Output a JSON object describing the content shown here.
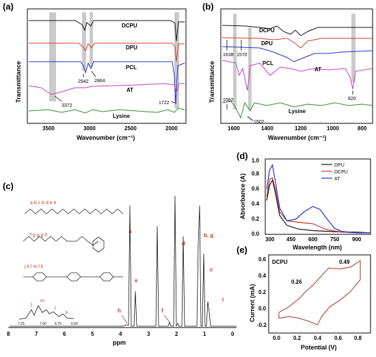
{
  "panels": {
    "a": {
      "letter": "(a)",
      "ylabel": "Transmittance",
      "xlabel": "Wavenumber (cm⁻¹)",
      "x_ticks": [
        "3500",
        "3000",
        "2500",
        "2000"
      ],
      "series": [
        {
          "name": "DCPU",
          "color": "#111111"
        },
        {
          "name": "DPU",
          "color": "#d43a2a"
        },
        {
          "name": "PCL",
          "color": "#1f2fd0"
        },
        {
          "name": "AT",
          "color": "#c43cc8"
        },
        {
          "name": "Lysine",
          "color": "#2e8b2e"
        }
      ],
      "annotations": [
        "2942",
        "2864",
        "3372",
        "1722"
      ]
    },
    "b": {
      "letter": "(b)",
      "ylabel": "Transmittance",
      "xlabel": "Wavenumber (cm⁻¹)",
      "x_ticks": [
        "1600",
        "1400",
        "1200",
        "1000",
        "800"
      ],
      "series": [
        {
          "name": "DCPU",
          "color": "#111111"
        },
        {
          "name": "DPU",
          "color": "#d43a2a"
        },
        {
          "name": "PCL",
          "color": "#1f2fd0"
        },
        {
          "name": "AT",
          "color": "#c43cc8"
        },
        {
          "name": "Lysine",
          "color": "#2e8b2e"
        }
      ],
      "annotations": [
        "1638",
        "1570",
        "820",
        "1582",
        "1502"
      ]
    },
    "c": {
      "letter": "(c)",
      "xlabel": "ppm",
      "x_ticks": [
        "8",
        "7",
        "6",
        "5",
        "4",
        "3",
        "2",
        "1",
        "0"
      ],
      "struct_labels_1": "a b c b d   e e",
      "struct_labels_2": "f g g g h",
      "struct_labels_3": "j  k  l        m        l  k",
      "peak_labels": [
        "a",
        "h",
        "e",
        "f",
        "d",
        "b, g",
        "c",
        "i"
      ],
      "inset_labels": [
        "j",
        "m",
        "l",
        "k"
      ],
      "inset_ticks": [
        "7.25",
        "7.00",
        "6.75",
        "6.50"
      ]
    },
    "d": {
      "letter": "(d)",
      "ylabel": "Absorbance (A)",
      "xlabel": "Wavelength (nm)",
      "x_ticks": [
        "300",
        "450",
        "600",
        "750",
        "900"
      ],
      "y_ticks": [
        "0.0",
        "0.2",
        "0.4",
        "0.6",
        "0.8",
        "1.0"
      ],
      "legend": [
        {
          "name": "DPU",
          "color": "#111111"
        },
        {
          "name": "DCPU",
          "color": "#c0392b"
        },
        {
          "name": "AT",
          "color": "#1f2fd0"
        }
      ]
    },
    "e": {
      "letter": "(e)",
      "ylabel": "Current (mA)",
      "xlabel": "Potential (V)",
      "x_ticks": [
        "0.0",
        "0.2",
        "0.4",
        "0.6",
        "0.8"
      ],
      "y_ticks": [
        "-0.2",
        "0.0",
        "0.2",
        "0.4",
        "0.6"
      ],
      "series_label": "DCPU",
      "annotations": [
        "0.49",
        "0.26"
      ],
      "color": "#b5523b"
    }
  },
  "chart_data": [
    {
      "type": "line",
      "panel": "d",
      "xlabel": "Wavelength (nm)",
      "ylabel": "Absorbance (A)",
      "xlim": [
        270,
        1000
      ],
      "ylim": [
        0,
        1.0
      ],
      "series": [
        {
          "name": "DPU",
          "x": [
            280,
            300,
            320,
            340,
            370,
            420,
            500,
            600,
            700,
            800,
            900,
            1000
          ],
          "values": [
            0.45,
            0.65,
            0.72,
            0.55,
            0.25,
            0.12,
            0.07,
            0.05,
            0.04,
            0.03,
            0.03,
            0.02
          ]
        },
        {
          "name": "DCPU",
          "x": [
            280,
            300,
            320,
            340,
            370,
            420,
            500,
            600,
            650,
            700,
            800,
            900,
            1000
          ],
          "values": [
            0.5,
            0.73,
            0.75,
            0.6,
            0.3,
            0.18,
            0.16,
            0.14,
            0.1,
            0.06,
            0.03,
            0.02,
            0.02
          ]
        },
        {
          "name": "AT",
          "x": [
            280,
            300,
            320,
            340,
            370,
            420,
            480,
            540,
            600,
            650,
            700,
            750,
            800,
            900,
            1000
          ],
          "values": [
            0.6,
            0.85,
            0.92,
            0.7,
            0.35,
            0.18,
            0.2,
            0.3,
            0.37,
            0.33,
            0.2,
            0.08,
            0.04,
            0.02,
            0.02
          ]
        }
      ]
    },
    {
      "type": "line",
      "panel": "e",
      "xlabel": "Potential (V)",
      "ylabel": "Current (mA)",
      "xlim": [
        -0.1,
        0.9
      ],
      "ylim": [
        -0.3,
        0.65
      ],
      "series": [
        {
          "name": "DCPU",
          "x": [
            0.0,
            0.1,
            0.2,
            0.26,
            0.35,
            0.42,
            0.49,
            0.6,
            0.7,
            0.8,
            0.8,
            0.7,
            0.6,
            0.5,
            0.42,
            0.38,
            0.3,
            0.2,
            0.1,
            0.0,
            0.0
          ],
          "values": [
            -0.05,
            0.02,
            0.12,
            0.2,
            0.3,
            0.4,
            0.49,
            0.48,
            0.5,
            0.58,
            0.35,
            0.2,
            0.1,
            0.02,
            -0.1,
            -0.2,
            -0.16,
            -0.12,
            -0.1,
            -0.12,
            -0.05
          ]
        }
      ]
    }
  ]
}
